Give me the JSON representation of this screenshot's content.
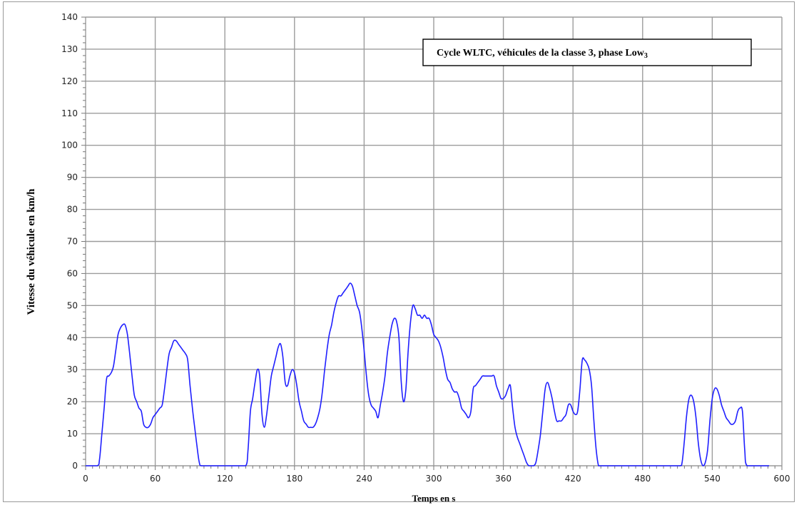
{
  "chart_data": {
    "type": "line",
    "title": "Cycle WLTC, véhicules de la classe 3, phase Low",
    "title_subscript": "3",
    "xlabel": "Temps en s",
    "ylabel": "Vitesse du véhicule en km/h",
    "xlim": [
      0,
      600
    ],
    "ylim": [
      0,
      140
    ],
    "x_ticks": [
      0,
      60,
      120,
      180,
      240,
      300,
      360,
      420,
      480,
      540,
      600
    ],
    "y_ticks": [
      0,
      10,
      20,
      30,
      40,
      50,
      60,
      70,
      80,
      90,
      100,
      110,
      120,
      130,
      140
    ],
    "grid": true,
    "legend_position": "top-right",
    "series_color": "#1f1fff",
    "series": [
      {
        "x": [
          0,
          10,
          12,
          14,
          16,
          18,
          20,
          22,
          24,
          26,
          28,
          30,
          32,
          34,
          36,
          38,
          40,
          42,
          44,
          46,
          48,
          50,
          52,
          54,
          56,
          58,
          60,
          62,
          64,
          66,
          68,
          70,
          72,
          74,
          76,
          78,
          80,
          82,
          84,
          86,
          88,
          90,
          92,
          94,
          96,
          98,
          100,
          110,
          120,
          130,
          138,
          140,
          142,
          144,
          146,
          148,
          150,
          152,
          154,
          156,
          158,
          160,
          162,
          164,
          166,
          168,
          170,
          172,
          174,
          176,
          178,
          180,
          182,
          184,
          186,
          188,
          190,
          192,
          194,
          196,
          198,
          200,
          202,
          204,
          206,
          208,
          210,
          212,
          214,
          216,
          218,
          220,
          222,
          224,
          226,
          228,
          230,
          232,
          234,
          236,
          238,
          240,
          242,
          244,
          246,
          248,
          250,
          252,
          254,
          256,
          258,
          260,
          262,
          264,
          266,
          268,
          270,
          272,
          274,
          276,
          278,
          280,
          282,
          284,
          286,
          288,
          290,
          292,
          294,
          296,
          298,
          300,
          302,
          304,
          306,
          308,
          310,
          312,
          314,
          316,
          318,
          320,
          322,
          324,
          326,
          328,
          330,
          332,
          334,
          336,
          338,
          340,
          342,
          344,
          346,
          348,
          350,
          352,
          354,
          356,
          358,
          360,
          362,
          364,
          366,
          368,
          370,
          372,
          374,
          376,
          378,
          380,
          382,
          384,
          386,
          388,
          390,
          392,
          394,
          396,
          398,
          400,
          402,
          404,
          406,
          408,
          410,
          412,
          414,
          416,
          418,
          420,
          422,
          424,
          426,
          428,
          430,
          432,
          434,
          436,
          438,
          440,
          442,
          444,
          446,
          460,
          480,
          500,
          512,
          514,
          516,
          518,
          520,
          522,
          524,
          526,
          528,
          530,
          532,
          534,
          536,
          538,
          540,
          542,
          544,
          546,
          548,
          550,
          552,
          554,
          556,
          558,
          560,
          562,
          564,
          566,
          568,
          570,
          580,
          589
        ],
        "y": [
          0,
          0,
          2,
          10,
          18,
          27,
          28,
          29,
          31,
          36,
          41,
          43,
          44,
          44,
          41,
          35,
          28,
          22,
          20,
          18,
          17,
          13,
          12,
          12,
          13,
          15,
          16,
          17,
          18,
          19,
          24,
          30,
          35,
          37,
          39,
          39,
          38,
          37,
          36,
          35,
          33,
          25,
          18,
          12,
          6,
          1,
          0,
          0,
          0,
          0,
          0,
          5,
          17,
          21,
          26,
          30,
          28,
          16,
          12,
          16,
          22,
          28,
          31,
          34,
          37,
          38,
          34,
          26,
          25,
          28,
          30,
          29,
          25,
          20,
          17,
          14,
          13,
          12,
          12,
          12,
          13,
          15,
          18,
          23,
          30,
          36,
          41,
          44,
          48,
          51,
          53,
          53,
          54,
          55,
          56,
          57,
          56,
          53,
          50,
          48,
          43,
          36,
          28,
          22,
          19,
          18,
          17,
          15,
          19,
          23,
          28,
          35,
          40,
          44,
          46,
          45,
          40,
          26,
          20,
          24,
          36,
          45,
          50,
          49,
          47,
          47,
          46,
          47,
          46,
          46,
          44,
          41,
          40,
          39,
          37,
          34,
          30,
          27,
          26,
          24,
          23,
          23,
          21,
          18,
          17,
          16,
          15,
          17,
          24,
          25,
          26,
          27,
          28,
          28,
          28,
          28,
          28,
          28,
          25,
          23,
          21,
          21,
          22,
          24,
          25,
          18,
          12,
          9,
          7,
          5,
          3,
          1,
          0,
          0,
          0,
          1,
          5,
          10,
          17,
          24,
          26,
          24,
          21,
          17,
          14,
          14,
          14,
          15,
          16,
          19,
          19,
          17,
          16,
          17,
          24,
          33,
          33,
          32,
          30,
          25,
          14,
          5,
          0,
          0,
          0,
          0,
          0,
          0,
          0,
          1,
          8,
          16,
          21,
          22,
          20,
          15,
          7,
          2,
          0,
          1,
          5,
          14,
          21,
          24,
          24,
          22,
          19,
          17,
          15,
          14,
          13,
          13,
          14,
          17,
          18,
          17,
          5,
          0,
          0,
          0
        ]
      }
    ]
  }
}
